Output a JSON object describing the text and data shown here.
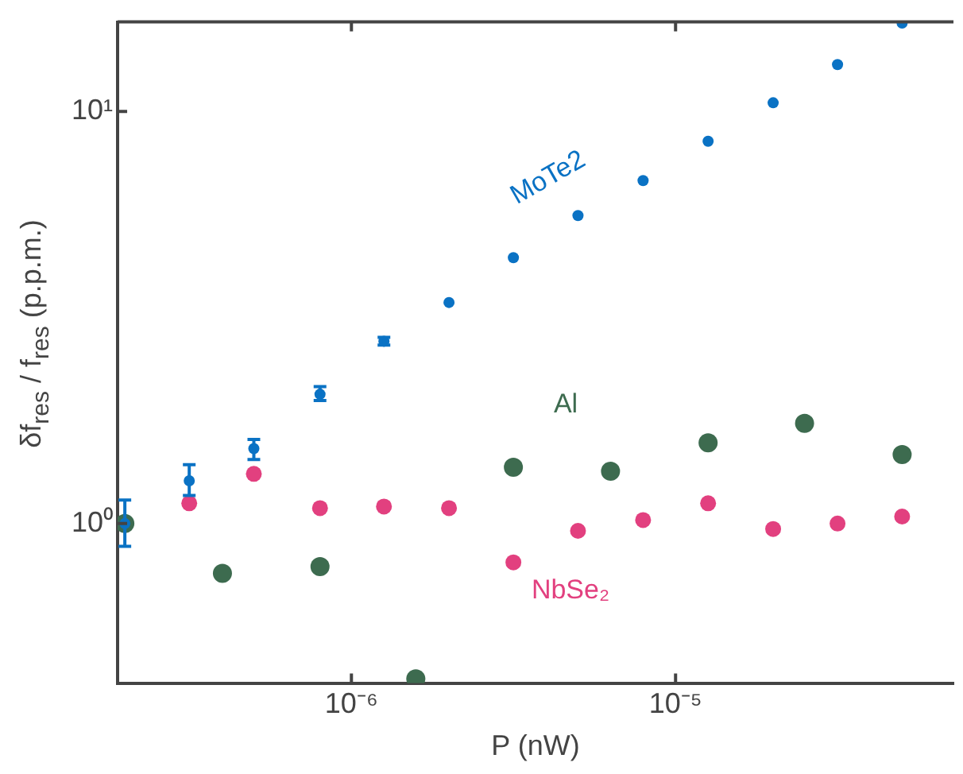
{
  "chart_data": {
    "type": "scatter",
    "xlabel": "P (nW)",
    "ylabel": "δf$_{res}$ / f$_{res}$ (p.p.m.)",
    "log": "xy",
    "grid": false,
    "legend": false,
    "marker": "circle",
    "xlim": [
      1.9e-07,
      7.2e-05
    ],
    "ylim": [
      0.41,
      16.5
    ],
    "xticks": [
      {
        "value": 1e-06,
        "label": "10⁻⁶"
      },
      {
        "value": 1e-05,
        "label": "10⁻⁵"
      }
    ],
    "yticks": [
      {
        "value": 1,
        "label": "10⁰"
      },
      {
        "value": 10,
        "label": "10¹"
      }
    ],
    "series": [
      {
        "name": "MoTe2",
        "color": "#0a72c4",
        "x": [
          2e-07,
          3.16e-07,
          5e-07,
          8e-07,
          1.26e-06,
          2e-06,
          3.16e-06,
          5e-06,
          7.94e-06,
          1.26e-05,
          2e-05,
          3.16e-05,
          5e-05
        ],
        "values": [
          1.0,
          1.27,
          1.52,
          2.06,
          2.77,
          3.44,
          4.42,
          5.59,
          6.8,
          8.47,
          10.5,
          13.0,
          16.4
        ],
        "errors": [
          [
            0.88,
            1.14
          ],
          [
            1.17,
            1.39
          ],
          [
            1.43,
            1.6
          ],
          [
            1.99,
            2.15
          ],
          [
            2.71,
            2.83
          ],
          null,
          null,
          null,
          null,
          null,
          null,
          null,
          null
        ]
      },
      {
        "name": "Al",
        "color": "#3d6b4f",
        "x": [
          2e-07,
          4e-07,
          8e-07,
          1.58e-06,
          3.16e-06,
          6.3e-06,
          1.26e-05,
          2.5e-05,
          5e-05
        ],
        "values": [
          1.0,
          0.757,
          0.786,
          0.42,
          1.37,
          1.34,
          1.57,
          1.75,
          1.47
        ]
      },
      {
        "name": "NbSe₂",
        "color": "#e2407f",
        "x": [
          3.16e-07,
          5e-07,
          8e-07,
          1.26e-06,
          2e-06,
          3.16e-06,
          5e-06,
          7.94e-06,
          1.26e-05,
          2e-05,
          3.16e-05,
          5e-05
        ],
        "values": [
          1.12,
          1.32,
          1.09,
          1.1,
          1.09,
          0.805,
          0.96,
          1.02,
          1.12,
          0.97,
          1.0,
          1.04
        ]
      }
    ]
  }
}
